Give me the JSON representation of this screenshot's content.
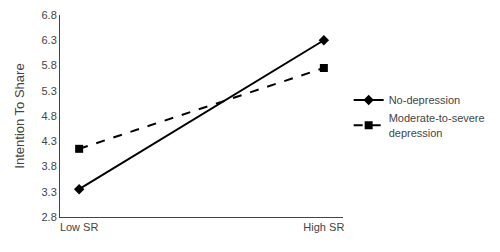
{
  "chart_data": {
    "type": "line",
    "categories": [
      "Low SR",
      "High SR"
    ],
    "series": [
      {
        "name": "No-depression",
        "color": "#000000",
        "marker": "diamond",
        "line_style": "solid",
        "values": [
          3.35,
          6.3
        ]
      },
      {
        "name": "Moderate-to-severe\ndepression",
        "color": "#000000",
        "marker": "square",
        "line_style": "dash",
        "values": [
          4.15,
          5.75
        ]
      }
    ],
    "ylabel": "Intention To Share",
    "ylim": [
      2.8,
      6.8
    ],
    "yticks": [
      2.8,
      3.3,
      3.8,
      4.3,
      4.8,
      5.3,
      5.8,
      6.3,
      6.8
    ],
    "grid": false,
    "legend": "right"
  }
}
